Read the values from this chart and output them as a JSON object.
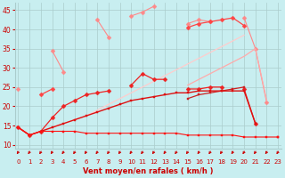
{
  "xlabel": "Vent moyen/en rafales ( km/h )",
  "x": [
    0,
    1,
    2,
    3,
    4,
    5,
    6,
    7,
    8,
    9,
    10,
    11,
    12,
    13,
    14,
    15,
    16,
    17,
    18,
    19,
    20,
    21,
    22,
    23
  ],
  "series": [
    {
      "name": "pink_top_spiky",
      "color": "#ff8888",
      "marker": "D",
      "lw": 0.8,
      "ms": 2.5,
      "y": [
        24.5,
        null,
        null,
        34.5,
        29.0,
        null,
        null,
        42.5,
        38.0,
        null,
        43.5,
        44.5,
        46.0,
        null,
        null,
        41.5,
        42.5,
        42.0,
        null,
        null,
        43.0,
        35.0,
        21.0,
        null
      ]
    },
    {
      "name": "pink_upper_diagonal",
      "color": "#ffaaaa",
      "marker": null,
      "lw": 0.9,
      "ms": 0,
      "y": [
        null,
        null,
        null,
        null,
        null,
        null,
        null,
        null,
        null,
        null,
        null,
        null,
        null,
        null,
        null,
        25.5,
        27.0,
        28.5,
        30.0,
        31.5,
        33.0,
        35.0,
        21.5,
        null
      ]
    },
    {
      "name": "pink_mid_diagonal",
      "color": "#ffcccc",
      "marker": null,
      "lw": 0.9,
      "ms": 0,
      "y": [
        14.5,
        12.5,
        13.5,
        14.5,
        15.5,
        16.5,
        17.5,
        19.0,
        20.5,
        22.0,
        23.5,
        25.0,
        26.5,
        28.0,
        29.5,
        31.0,
        32.5,
        34.0,
        35.5,
        37.0,
        38.5,
        null,
        null,
        null
      ]
    },
    {
      "name": "red_marked_upper",
      "color": "#ff4444",
      "marker": "D",
      "lw": 0.9,
      "ms": 2.5,
      "y": [
        null,
        null,
        23.0,
        24.5,
        null,
        null,
        null,
        null,
        null,
        null,
        null,
        null,
        null,
        null,
        null,
        40.5,
        41.5,
        42.0,
        42.5,
        43.0,
        41.0,
        null,
        null,
        null
      ]
    },
    {
      "name": "red_mid_line",
      "color": "#ee2222",
      "marker": "D",
      "lw": 0.9,
      "ms": 2.5,
      "y": [
        14.5,
        12.5,
        13.5,
        17.0,
        20.0,
        21.5,
        23.0,
        23.5,
        24.0,
        null,
        25.5,
        28.5,
        27.0,
        27.0,
        null,
        24.5,
        24.5,
        25.0,
        25.0,
        null,
        24.5,
        15.5,
        null,
        null
      ]
    },
    {
      "name": "red_smooth_upper",
      "color": "#cc2222",
      "marker": "s",
      "lw": 0.9,
      "ms": 2,
      "y": [
        null,
        null,
        null,
        null,
        null,
        null,
        null,
        null,
        null,
        null,
        null,
        null,
        null,
        null,
        null,
        22.0,
        23.0,
        23.5,
        24.0,
        24.5,
        25.0,
        null,
        null,
        null
      ]
    },
    {
      "name": "red_main_diagonal",
      "color": "#dd1111",
      "marker": "s",
      "lw": 1.0,
      "ms": 2,
      "y": [
        14.5,
        12.5,
        13.5,
        14.5,
        15.5,
        16.5,
        17.5,
        18.5,
        19.5,
        20.5,
        21.5,
        22.0,
        22.5,
        23.0,
        23.5,
        23.5,
        24.0,
        24.0,
        24.0,
        24.0,
        24.0,
        15.5,
        null,
        12.0
      ]
    },
    {
      "name": "red_flat_bottom",
      "color": "#ff1111",
      "marker": "s",
      "lw": 0.8,
      "ms": 1.5,
      "y": [
        14.5,
        12.5,
        13.5,
        13.5,
        13.5,
        13.5,
        13.0,
        13.0,
        13.0,
        13.0,
        13.0,
        13.0,
        13.0,
        13.0,
        13.0,
        12.5,
        12.5,
        12.5,
        12.5,
        12.5,
        12.0,
        12.0,
        12.0,
        12.0
      ]
    }
  ],
  "ylim": [
    9,
    47
  ],
  "xlim": [
    -0.3,
    23.3
  ],
  "yticks": [
    10,
    15,
    20,
    25,
    30,
    35,
    40,
    45
  ],
  "xticks": [
    0,
    1,
    2,
    3,
    4,
    5,
    6,
    7,
    8,
    9,
    10,
    11,
    12,
    13,
    14,
    15,
    16,
    17,
    18,
    19,
    20,
    21,
    22,
    23
  ],
  "bg_color": "#c8eef0",
  "grid_color": "#aacccc",
  "tick_color": "#cc0000",
  "label_color": "#cc0000"
}
